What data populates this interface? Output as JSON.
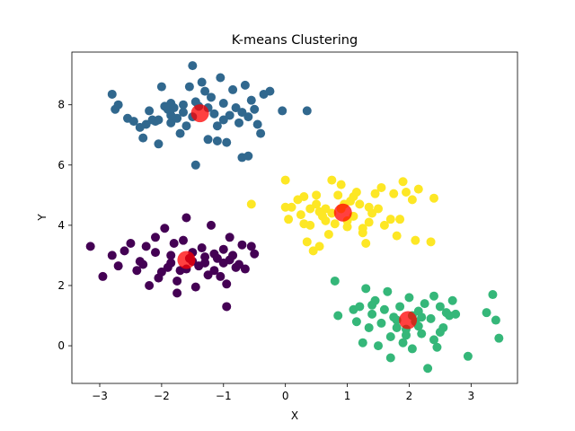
{
  "chart_data": {
    "type": "scatter",
    "title": "K-means Clustering",
    "xlabel": "X",
    "ylabel": "Y",
    "xlim": [
      -3.45,
      3.75
    ],
    "ylim": [
      -1.25,
      9.75
    ],
    "xticks": [
      -3,
      -2,
      -1,
      0,
      1,
      2,
      3
    ],
    "yticks": [
      0,
      2,
      4,
      6,
      8
    ],
    "grid": false,
    "colors": {
      "cluster_0": "#440154",
      "cluster_1": "#31688e",
      "cluster_2": "#35b779",
      "cluster_3": "#fde725",
      "centroid": "#ff0000"
    },
    "series": [
      {
        "cluster": "cluster_1",
        "points": [
          [
            -2.8,
            8.35
          ],
          [
            -2.75,
            7.85
          ],
          [
            -2.7,
            8.0
          ],
          [
            -2.55,
            7.55
          ],
          [
            -2.45,
            7.45
          ],
          [
            -2.35,
            7.25
          ],
          [
            -2.3,
            6.9
          ],
          [
            -2.2,
            7.8
          ],
          [
            -2.15,
            7.5
          ],
          [
            -2.1,
            7.45
          ],
          [
            -2.05,
            6.7
          ],
          [
            -2.05,
            7.5
          ],
          [
            -2.0,
            8.6
          ],
          [
            -1.9,
            7.85
          ],
          [
            -1.85,
            7.4
          ],
          [
            -1.85,
            8.05
          ],
          [
            -1.8,
            7.9
          ],
          [
            -1.75,
            7.55
          ],
          [
            -1.7,
            7.05
          ],
          [
            -1.65,
            8.0
          ],
          [
            -1.6,
            7.3
          ],
          [
            -1.55,
            8.6
          ],
          [
            -1.5,
            7.6
          ],
          [
            -1.5,
            9.3
          ],
          [
            -1.45,
            6.0
          ],
          [
            -1.4,
            7.95
          ],
          [
            -1.35,
            8.75
          ],
          [
            -1.3,
            8.45
          ],
          [
            -1.25,
            6.85
          ],
          [
            -1.25,
            7.9
          ],
          [
            -1.2,
            8.25
          ],
          [
            -1.1,
            6.8
          ],
          [
            -1.1,
            7.3
          ],
          [
            -1.05,
            8.9
          ],
          [
            -1.0,
            8.05
          ],
          [
            -0.95,
            6.75
          ],
          [
            -0.9,
            7.65
          ],
          [
            -0.85,
            8.5
          ],
          [
            -0.8,
            7.9
          ],
          [
            -0.75,
            7.4
          ],
          [
            -0.7,
            6.25
          ],
          [
            -0.65,
            8.65
          ],
          [
            -0.6,
            7.6
          ],
          [
            -0.55,
            8.15
          ],
          [
            -0.5,
            7.85
          ],
          [
            -0.45,
            7.35
          ],
          [
            -0.4,
            7.05
          ],
          [
            -0.35,
            8.35
          ],
          [
            -0.25,
            8.45
          ],
          [
            -0.05,
            7.8
          ],
          [
            0.35,
            7.8
          ],
          [
            -0.6,
            6.3
          ],
          [
            -1.95,
            7.95
          ],
          [
            -2.25,
            7.35
          ],
          [
            -1.15,
            7.7
          ],
          [
            -1.0,
            7.5
          ],
          [
            -0.7,
            7.75
          ],
          [
            -1.65,
            7.75
          ],
          [
            -1.85,
            7.65
          ],
          [
            -1.45,
            8.1
          ]
        ]
      },
      {
        "cluster": "cluster_3",
        "points": [
          [
            -0.55,
            4.7
          ],
          [
            0.0,
            5.5
          ],
          [
            0.0,
            4.6
          ],
          [
            0.05,
            4.2
          ],
          [
            0.1,
            4.6
          ],
          [
            0.2,
            4.85
          ],
          [
            0.25,
            4.35
          ],
          [
            0.3,
            4.95
          ],
          [
            0.35,
            3.45
          ],
          [
            0.4,
            4.0
          ],
          [
            0.4,
            4.55
          ],
          [
            0.45,
            3.15
          ],
          [
            0.5,
            4.7
          ],
          [
            0.5,
            5.0
          ],
          [
            0.55,
            3.3
          ],
          [
            0.6,
            4.3
          ],
          [
            0.65,
            4.55
          ],
          [
            0.7,
            3.7
          ],
          [
            0.75,
            5.5
          ],
          [
            0.8,
            4.05
          ],
          [
            0.85,
            5.0
          ],
          [
            0.9,
            5.35
          ],
          [
            0.95,
            4.7
          ],
          [
            1.0,
            3.95
          ],
          [
            1.05,
            4.8
          ],
          [
            1.1,
            4.3
          ],
          [
            1.15,
            5.1
          ],
          [
            1.2,
            4.7
          ],
          [
            1.25,
            3.9
          ],
          [
            1.3,
            3.4
          ],
          [
            1.35,
            4.1
          ],
          [
            1.4,
            4.4
          ],
          [
            1.45,
            5.05
          ],
          [
            1.5,
            4.55
          ],
          [
            1.55,
            5.25
          ],
          [
            1.6,
            4.0
          ],
          [
            1.7,
            4.2
          ],
          [
            1.75,
            5.05
          ],
          [
            1.8,
            3.65
          ],
          [
            1.85,
            4.2
          ],
          [
            1.9,
            5.45
          ],
          [
            1.95,
            5.1
          ],
          [
            2.05,
            4.85
          ],
          [
            2.1,
            3.5
          ],
          [
            2.15,
            5.2
          ],
          [
            2.35,
            3.45
          ],
          [
            2.4,
            4.9
          ],
          [
            1.25,
            3.75
          ],
          [
            0.65,
            4.15
          ],
          [
            0.9,
            4.55
          ],
          [
            1.1,
            4.95
          ],
          [
            0.3,
            4.05
          ],
          [
            0.55,
            4.45
          ],
          [
            1.0,
            4.15
          ],
          [
            1.35,
            4.6
          ],
          [
            0.75,
            4.4
          ]
        ]
      },
      {
        "cluster": "cluster_0",
        "points": [
          [
            -3.15,
            3.3
          ],
          [
            -2.95,
            2.3
          ],
          [
            -2.8,
            3.0
          ],
          [
            -2.7,
            2.65
          ],
          [
            -2.6,
            3.15
          ],
          [
            -2.5,
            3.4
          ],
          [
            -2.35,
            2.8
          ],
          [
            -2.3,
            2.7
          ],
          [
            -2.25,
            3.3
          ],
          [
            -2.2,
            2.0
          ],
          [
            -2.1,
            3.1
          ],
          [
            -2.05,
            2.25
          ],
          [
            -2.0,
            2.45
          ],
          [
            -1.95,
            3.9
          ],
          [
            -1.9,
            2.6
          ],
          [
            -1.85,
            3.0
          ],
          [
            -1.8,
            3.4
          ],
          [
            -1.75,
            2.15
          ],
          [
            -1.7,
            2.5
          ],
          [
            -1.65,
            3.5
          ],
          [
            -1.6,
            4.25
          ],
          [
            -1.55,
            2.9
          ],
          [
            -1.5,
            3.1
          ],
          [
            -1.45,
            1.95
          ],
          [
            -1.4,
            2.65
          ],
          [
            -1.35,
            3.25
          ],
          [
            -1.3,
            2.75
          ],
          [
            -1.25,
            2.35
          ],
          [
            -1.2,
            4.0
          ],
          [
            -1.15,
            3.05
          ],
          [
            -1.1,
            2.9
          ],
          [
            -1.05,
            2.3
          ],
          [
            -1.0,
            3.2
          ],
          [
            -0.95,
            2.05
          ],
          [
            -0.9,
            2.85
          ],
          [
            -0.85,
            3.0
          ],
          [
            -0.8,
            2.6
          ],
          [
            -0.75,
            2.7
          ],
          [
            -0.7,
            3.35
          ],
          [
            -0.65,
            2.55
          ],
          [
            -0.55,
            3.3
          ],
          [
            -0.5,
            3.05
          ],
          [
            -0.95,
            1.3
          ],
          [
            -1.75,
            1.75
          ],
          [
            -2.1,
            3.6
          ],
          [
            -1.6,
            2.55
          ],
          [
            -1.3,
            2.95
          ],
          [
            -1.0,
            2.75
          ],
          [
            -2.4,
            2.5
          ],
          [
            -1.85,
            2.75
          ],
          [
            -0.9,
            3.6
          ],
          [
            -1.5,
            2.8
          ],
          [
            -1.15,
            2.5
          ]
        ]
      },
      {
        "cluster": "cluster_2",
        "points": [
          [
            0.8,
            2.15
          ],
          [
            0.85,
            1.0
          ],
          [
            1.1,
            1.2
          ],
          [
            1.15,
            0.8
          ],
          [
            1.2,
            1.3
          ],
          [
            1.25,
            0.1
          ],
          [
            1.3,
            1.9
          ],
          [
            1.35,
            0.6
          ],
          [
            1.4,
            1.05
          ],
          [
            1.45,
            1.5
          ],
          [
            1.5,
            0.0
          ],
          [
            1.55,
            0.75
          ],
          [
            1.6,
            1.2
          ],
          [
            1.65,
            1.8
          ],
          [
            1.7,
            0.3
          ],
          [
            1.7,
            -0.4
          ],
          [
            1.75,
            0.95
          ],
          [
            1.8,
            0.6
          ],
          [
            1.85,
            1.3
          ],
          [
            1.9,
            0.1
          ],
          [
            1.95,
            0.55
          ],
          [
            2.0,
            1.6
          ],
          [
            2.05,
            -0.1
          ],
          [
            2.1,
            0.8
          ],
          [
            2.15,
            1.15
          ],
          [
            2.2,
            0.4
          ],
          [
            2.25,
            1.4
          ],
          [
            2.3,
            -0.75
          ],
          [
            2.35,
            0.9
          ],
          [
            2.4,
            0.2
          ],
          [
            2.45,
            -0.05
          ],
          [
            2.5,
            1.3
          ],
          [
            2.55,
            0.6
          ],
          [
            2.6,
            1.1
          ],
          [
            2.65,
            1.0
          ],
          [
            2.7,
            1.5
          ],
          [
            2.75,
            1.05
          ],
          [
            2.95,
            -0.35
          ],
          [
            3.25,
            1.1
          ],
          [
            3.35,
            1.7
          ],
          [
            3.4,
            0.85
          ],
          [
            3.45,
            0.25
          ],
          [
            2.05,
            1.0
          ],
          [
            2.15,
            0.65
          ],
          [
            1.8,
            0.85
          ],
          [
            2.4,
            1.65
          ],
          [
            2.2,
            0.95
          ],
          [
            1.95,
            0.35
          ],
          [
            2.5,
            0.45
          ],
          [
            1.4,
            1.35
          ]
        ]
      }
    ],
    "centroids": [
      [
        -1.38,
        7.72
      ],
      [
        0.93,
        4.42
      ],
      [
        -1.6,
        2.85
      ],
      [
        1.98,
        0.85
      ]
    ]
  }
}
